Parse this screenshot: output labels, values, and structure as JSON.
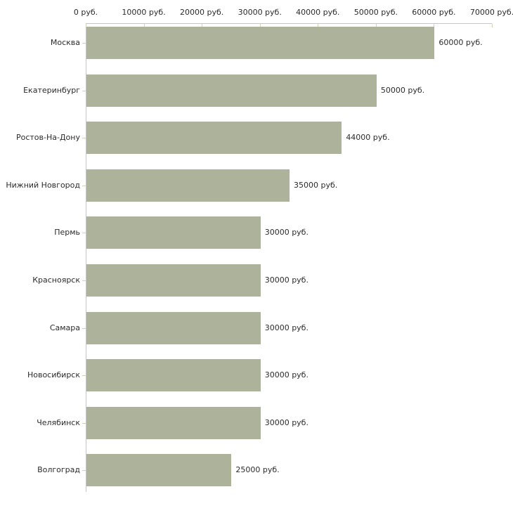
{
  "chart_data": {
    "type": "bar",
    "orientation": "horizontal",
    "title": "",
    "categories": [
      "Москва",
      "Екатеринбург",
      "Ростов-На-Дону",
      "Нижний Новгород",
      "Пермь",
      "Красноярск",
      "Самара",
      "Новосибирск",
      "Челябинск",
      "Волгоград"
    ],
    "values": [
      60000,
      50000,
      44000,
      35000,
      30000,
      30000,
      30000,
      30000,
      30000,
      25000
    ],
    "value_labels": [
      "60000 руб.",
      "50000 руб.",
      "44000 руб.",
      "35000 руб.",
      "30000 руб.",
      "30000 руб.",
      "30000 руб.",
      "30000 руб.",
      "30000 руб.",
      "25000 руб."
    ],
    "unit": "руб.",
    "x_axis": {
      "position": "top",
      "min": 0,
      "max": 70000,
      "ticks": [
        0,
        10000,
        20000,
        30000,
        40000,
        50000,
        60000,
        70000
      ],
      "tick_labels": [
        "0 руб.",
        "10000 руб.",
        "20000 руб.",
        "30000 руб.",
        "40000 руб.",
        "50000 руб.",
        "60000 руб.",
        "70000 руб."
      ]
    },
    "legend": "none",
    "grid": "off",
    "colors": {
      "bar": "#adb29a",
      "axis_line": "#c6c6c6",
      "tick_mark": "#d2d2b4",
      "text": "#2b2b2b",
      "background": "#ffffff"
    }
  }
}
